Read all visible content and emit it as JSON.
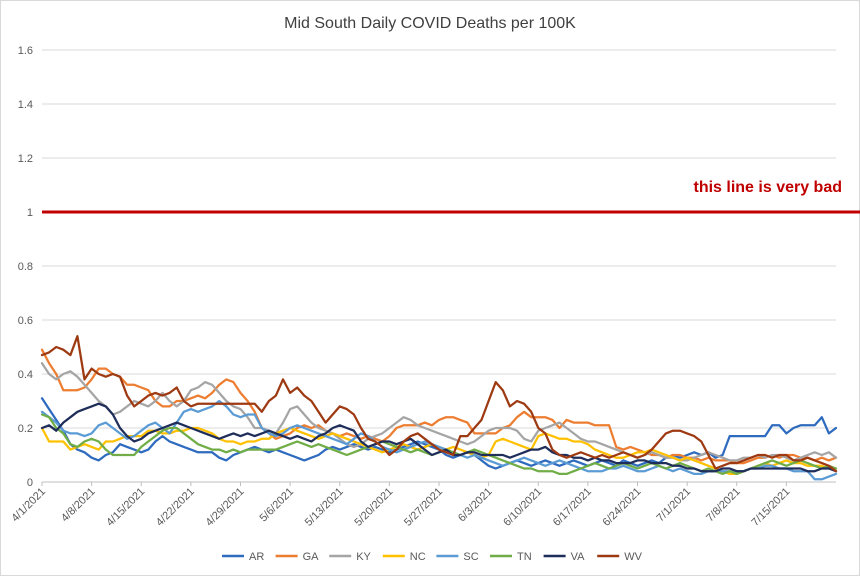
{
  "chart_data": {
    "type": "line",
    "title": "Mid South Daily COVID Deaths per 100K",
    "xlabel": "",
    "ylabel": "",
    "ylim": [
      0,
      1.6
    ],
    "yticks": [
      "0",
      "0.2",
      "0.4",
      "0.6",
      "0.8",
      "1",
      "1.2",
      "1.4",
      "1.6"
    ],
    "xticks": [
      "4/1/2021",
      "4/8/2021",
      "4/15/2021",
      "4/22/2021",
      "4/29/2021",
      "5/6/2021",
      "5/13/2021",
      "5/20/2021",
      "5/27/2021",
      "6/3/2021",
      "6/10/2021",
      "6/17/2021",
      "6/24/2021",
      "7/1/2021",
      "7/8/2021",
      "7/15/2021"
    ],
    "x_start": "4/1/2021",
    "x_days_step": 7,
    "grid": true,
    "legend": "bottom",
    "reference_line": {
      "value": 1,
      "label": "this line is very bad",
      "color": "#c00000"
    },
    "series": [
      {
        "name": "AR",
        "color": "#2e6bbf",
        "values": [
          0.31,
          0.27,
          0.23,
          0.19,
          0.14,
          0.12,
          0.11,
          0.09,
          0.08,
          0.1,
          0.11,
          0.14,
          0.13,
          0.12,
          0.11,
          0.12,
          0.15,
          0.17,
          0.15,
          0.14,
          0.13,
          0.12,
          0.11,
          0.11,
          0.11,
          0.09,
          0.08,
          0.1,
          0.11,
          0.12,
          0.13,
          0.12,
          0.11,
          0.12,
          0.11,
          0.1,
          0.09,
          0.08,
          0.09,
          0.1,
          0.12,
          0.13,
          0.12,
          0.13,
          0.14,
          0.13,
          0.12,
          0.13,
          0.12,
          0.11,
          0.12,
          0.13,
          0.14,
          0.15,
          0.14,
          0.13,
          0.12,
          0.1,
          0.09,
          0.1,
          0.11,
          0.1,
          0.08,
          0.06,
          0.05,
          0.06,
          0.07,
          0.08,
          0.07,
          0.06,
          0.07,
          0.08,
          0.07,
          0.06,
          0.07,
          0.08,
          0.07,
          0.06,
          0.07,
          0.08,
          0.07,
          0.06,
          0.08,
          0.07,
          0.06,
          0.07,
          0.08,
          0.07,
          0.09,
          0.1,
          0.09,
          0.1,
          0.11,
          0.1,
          0.11,
          0.09,
          0.1,
          0.17,
          0.17,
          0.17,
          0.17,
          0.17,
          0.17,
          0.21,
          0.21,
          0.18,
          0.2,
          0.21,
          0.21,
          0.21,
          0.24,
          0.18,
          0.2
        ]
      },
      {
        "name": "GA",
        "color": "#ed7d31",
        "values": [
          0.49,
          0.44,
          0.4,
          0.34,
          0.34,
          0.34,
          0.35,
          0.38,
          0.42,
          0.42,
          0.4,
          0.39,
          0.36,
          0.36,
          0.35,
          0.34,
          0.3,
          0.28,
          0.28,
          0.3,
          0.3,
          0.31,
          0.32,
          0.31,
          0.33,
          0.36,
          0.38,
          0.37,
          0.33,
          0.3,
          0.26,
          0.2,
          0.18,
          0.16,
          0.17,
          0.18,
          0.2,
          0.21,
          0.2,
          0.21,
          0.19,
          0.18,
          0.17,
          0.18,
          0.17,
          0.16,
          0.17,
          0.16,
          0.15,
          0.17,
          0.2,
          0.21,
          0.21,
          0.21,
          0.22,
          0.21,
          0.23,
          0.24,
          0.24,
          0.23,
          0.22,
          0.18,
          0.18,
          0.18,
          0.18,
          0.2,
          0.21,
          0.24,
          0.26,
          0.24,
          0.24,
          0.24,
          0.23,
          0.2,
          0.23,
          0.22,
          0.22,
          0.22,
          0.21,
          0.21,
          0.21,
          0.13,
          0.12,
          0.13,
          0.12,
          0.11,
          0.1,
          0.1,
          0.09,
          0.1,
          0.1,
          0.09,
          0.09,
          0.08,
          0.09,
          0.08,
          0.08,
          0.08,
          0.07,
          0.07,
          0.08,
          0.09,
          0.09,
          0.1,
          0.09,
          0.1,
          0.1,
          0.09,
          0.09,
          0.08,
          0.09,
          0.08,
          0.09
        ]
      },
      {
        "name": "KY",
        "color": "#a5a5a5",
        "values": [
          0.44,
          0.4,
          0.38,
          0.4,
          0.41,
          0.39,
          0.36,
          0.33,
          0.3,
          0.28,
          0.25,
          0.26,
          0.28,
          0.3,
          0.29,
          0.28,
          0.3,
          0.33,
          0.3,
          0.28,
          0.3,
          0.34,
          0.35,
          0.37,
          0.36,
          0.33,
          0.3,
          0.28,
          0.27,
          0.24,
          0.2,
          0.2,
          0.19,
          0.18,
          0.22,
          0.27,
          0.28,
          0.25,
          0.22,
          0.2,
          0.19,
          0.18,
          0.16,
          0.14,
          0.13,
          0.14,
          0.16,
          0.17,
          0.18,
          0.2,
          0.22,
          0.24,
          0.23,
          0.21,
          0.2,
          0.19,
          0.18,
          0.17,
          0.16,
          0.15,
          0.14,
          0.15,
          0.17,
          0.19,
          0.2,
          0.2,
          0.2,
          0.19,
          0.16,
          0.15,
          0.19,
          0.2,
          0.21,
          0.22,
          0.2,
          0.18,
          0.16,
          0.15,
          0.15,
          0.14,
          0.13,
          0.12,
          0.11,
          0.1,
          0.09,
          0.1,
          0.11,
          0.1,
          0.09,
          0.09,
          0.08,
          0.08,
          0.09,
          0.1,
          0.11,
          0.1,
          0.09,
          0.08,
          0.08,
          0.09,
          0.09,
          0.1,
          0.09,
          0.1,
          0.1,
          0.09,
          0.08,
          0.09,
          0.1,
          0.11,
          0.1,
          0.11,
          0.09
        ]
      },
      {
        "name": "NC",
        "color": "#ffc000",
        "values": [
          0.2,
          0.15,
          0.15,
          0.15,
          0.12,
          0.13,
          0.14,
          0.13,
          0.12,
          0.15,
          0.15,
          0.16,
          0.17,
          0.17,
          0.17,
          0.19,
          0.19,
          0.18,
          0.18,
          0.19,
          0.19,
          0.2,
          0.2,
          0.19,
          0.18,
          0.16,
          0.15,
          0.15,
          0.14,
          0.15,
          0.15,
          0.16,
          0.16,
          0.18,
          0.19,
          0.2,
          0.19,
          0.18,
          0.17,
          0.16,
          0.17,
          0.18,
          0.17,
          0.16,
          0.15,
          0.14,
          0.13,
          0.12,
          0.11,
          0.12,
          0.13,
          0.14,
          0.13,
          0.12,
          0.13,
          0.14,
          0.13,
          0.12,
          0.13,
          0.12,
          0.11,
          0.1,
          0.09,
          0.1,
          0.15,
          0.16,
          0.15,
          0.14,
          0.13,
          0.12,
          0.17,
          0.18,
          0.17,
          0.16,
          0.16,
          0.15,
          0.15,
          0.14,
          0.12,
          0.11,
          0.1,
          0.09,
          0.09,
          0.1,
          0.11,
          0.11,
          0.12,
          0.11,
          0.1,
          0.09,
          0.08,
          0.09,
          0.08,
          0.07,
          0.06,
          0.05,
          0.04,
          0.03,
          0.03,
          0.04,
          0.05,
          0.06,
          0.07,
          0.06,
          0.07,
          0.08,
          0.07,
          0.07,
          0.06,
          0.06,
          0.06,
          0.05,
          0.05
        ]
      },
      {
        "name": "SC",
        "color": "#5b9bd5",
        "values": [
          0.26,
          0.24,
          0.22,
          0.19,
          0.18,
          0.18,
          0.17,
          0.18,
          0.21,
          0.22,
          0.2,
          0.18,
          0.16,
          0.17,
          0.19,
          0.21,
          0.22,
          0.2,
          0.18,
          0.22,
          0.26,
          0.27,
          0.26,
          0.27,
          0.28,
          0.3,
          0.28,
          0.25,
          0.24,
          0.25,
          0.25,
          0.2,
          0.18,
          0.17,
          0.18,
          0.2,
          0.21,
          0.2,
          0.19,
          0.18,
          0.17,
          0.16,
          0.15,
          0.14,
          0.16,
          0.18,
          0.17,
          0.15,
          0.13,
          0.12,
          0.11,
          0.12,
          0.13,
          0.14,
          0.15,
          0.14,
          0.13,
          0.12,
          0.11,
          0.1,
          0.09,
          0.1,
          0.09,
          0.08,
          0.07,
          0.06,
          0.07,
          0.08,
          0.09,
          0.08,
          0.07,
          0.06,
          0.07,
          0.08,
          0.07,
          0.06,
          0.05,
          0.04,
          0.04,
          0.04,
          0.05,
          0.05,
          0.06,
          0.05,
          0.04,
          0.04,
          0.05,
          0.06,
          0.05,
          0.04,
          0.05,
          0.04,
          0.03,
          0.03,
          0.04,
          0.04,
          0.04,
          0.04,
          0.04,
          0.04,
          0.05,
          0.05,
          0.06,
          0.06,
          0.05,
          0.05,
          0.04,
          0.04,
          0.04,
          0.01,
          0.01,
          0.02,
          0.03
        ]
      },
      {
        "name": "TN",
        "color": "#70ad47",
        "values": [
          0.25,
          0.24,
          0.2,
          0.18,
          0.14,
          0.13,
          0.15,
          0.16,
          0.15,
          0.12,
          0.1,
          0.1,
          0.1,
          0.1,
          0.13,
          0.15,
          0.17,
          0.19,
          0.2,
          0.2,
          0.18,
          0.16,
          0.14,
          0.13,
          0.12,
          0.12,
          0.11,
          0.12,
          0.11,
          0.12,
          0.12,
          0.12,
          0.12,
          0.12,
          0.13,
          0.14,
          0.15,
          0.14,
          0.13,
          0.14,
          0.13,
          0.12,
          0.11,
          0.1,
          0.11,
          0.12,
          0.13,
          0.14,
          0.15,
          0.14,
          0.13,
          0.12,
          0.11,
          0.12,
          0.11,
          0.1,
          0.11,
          0.12,
          0.11,
          0.1,
          0.11,
          0.12,
          0.11,
          0.1,
          0.09,
          0.08,
          0.07,
          0.06,
          0.05,
          0.05,
          0.04,
          0.04,
          0.04,
          0.03,
          0.03,
          0.04,
          0.05,
          0.06,
          0.07,
          0.06,
          0.05,
          0.06,
          0.07,
          0.06,
          0.05,
          0.06,
          0.07,
          0.06,
          0.05,
          0.06,
          0.07,
          0.06,
          0.05,
          0.04,
          0.05,
          0.04,
          0.03,
          0.04,
          0.03,
          0.04,
          0.05,
          0.06,
          0.07,
          0.08,
          0.07,
          0.06,
          0.07,
          0.08,
          0.07,
          0.06,
          0.05,
          0.06,
          0.05
        ]
      },
      {
        "name": "VA",
        "color": "#1f2d5a",
        "values": [
          0.2,
          0.21,
          0.19,
          0.22,
          0.24,
          0.26,
          0.27,
          0.28,
          0.29,
          0.28,
          0.25,
          0.2,
          0.17,
          0.15,
          0.16,
          0.18,
          0.19,
          0.2,
          0.21,
          0.22,
          0.21,
          0.2,
          0.19,
          0.18,
          0.17,
          0.16,
          0.17,
          0.18,
          0.17,
          0.18,
          0.17,
          0.18,
          0.19,
          0.18,
          0.17,
          0.16,
          0.17,
          0.16,
          0.15,
          0.17,
          0.18,
          0.2,
          0.21,
          0.2,
          0.19,
          0.15,
          0.13,
          0.14,
          0.15,
          0.15,
          0.14,
          0.15,
          0.16,
          0.14,
          0.12,
          0.1,
          0.11,
          0.12,
          0.1,
          0.1,
          0.11,
          0.11,
          0.1,
          0.1,
          0.1,
          0.1,
          0.09,
          0.1,
          0.11,
          0.12,
          0.12,
          0.13,
          0.11,
          0.1,
          0.1,
          0.09,
          0.09,
          0.08,
          0.09,
          0.08,
          0.08,
          0.07,
          0.07,
          0.07,
          0.08,
          0.08,
          0.07,
          0.07,
          0.07,
          0.06,
          0.06,
          0.05,
          0.05,
          0.04,
          0.04,
          0.04,
          0.05,
          0.05,
          0.04,
          0.04,
          0.05,
          0.05,
          0.05,
          0.05,
          0.05,
          0.05,
          0.05,
          0.05,
          0.04,
          0.04,
          0.05,
          0.05,
          0.04
        ]
      },
      {
        "name": "WV",
        "color": "#9e3a12",
        "values": [
          0.47,
          0.48,
          0.5,
          0.49,
          0.47,
          0.54,
          0.38,
          0.42,
          0.4,
          0.39,
          0.4,
          0.39,
          0.32,
          0.28,
          0.3,
          0.32,
          0.33,
          0.32,
          0.33,
          0.35,
          0.3,
          0.28,
          0.29,
          0.29,
          0.29,
          0.29,
          0.29,
          0.29,
          0.29,
          0.29,
          0.29,
          0.26,
          0.3,
          0.32,
          0.38,
          0.33,
          0.35,
          0.32,
          0.3,
          0.26,
          0.22,
          0.25,
          0.28,
          0.27,
          0.25,
          0.2,
          0.16,
          0.15,
          0.13,
          0.1,
          0.12,
          0.15,
          0.17,
          0.18,
          0.16,
          0.14,
          0.12,
          0.11,
          0.1,
          0.17,
          0.17,
          0.2,
          0.23,
          0.3,
          0.37,
          0.34,
          0.28,
          0.3,
          0.29,
          0.26,
          0.2,
          0.18,
          0.12,
          0.1,
          0.09,
          0.1,
          0.11,
          0.1,
          0.09,
          0.1,
          0.09,
          0.1,
          0.11,
          0.1,
          0.09,
          0.1,
          0.12,
          0.15,
          0.18,
          0.19,
          0.19,
          0.18,
          0.17,
          0.15,
          0.1,
          0.05,
          0.06,
          0.07,
          0.07,
          0.08,
          0.09,
          0.1,
          0.1,
          0.09,
          0.1,
          0.1,
          0.08,
          0.08,
          0.09,
          0.08,
          0.07,
          0.06,
          0.04
        ]
      }
    ]
  }
}
